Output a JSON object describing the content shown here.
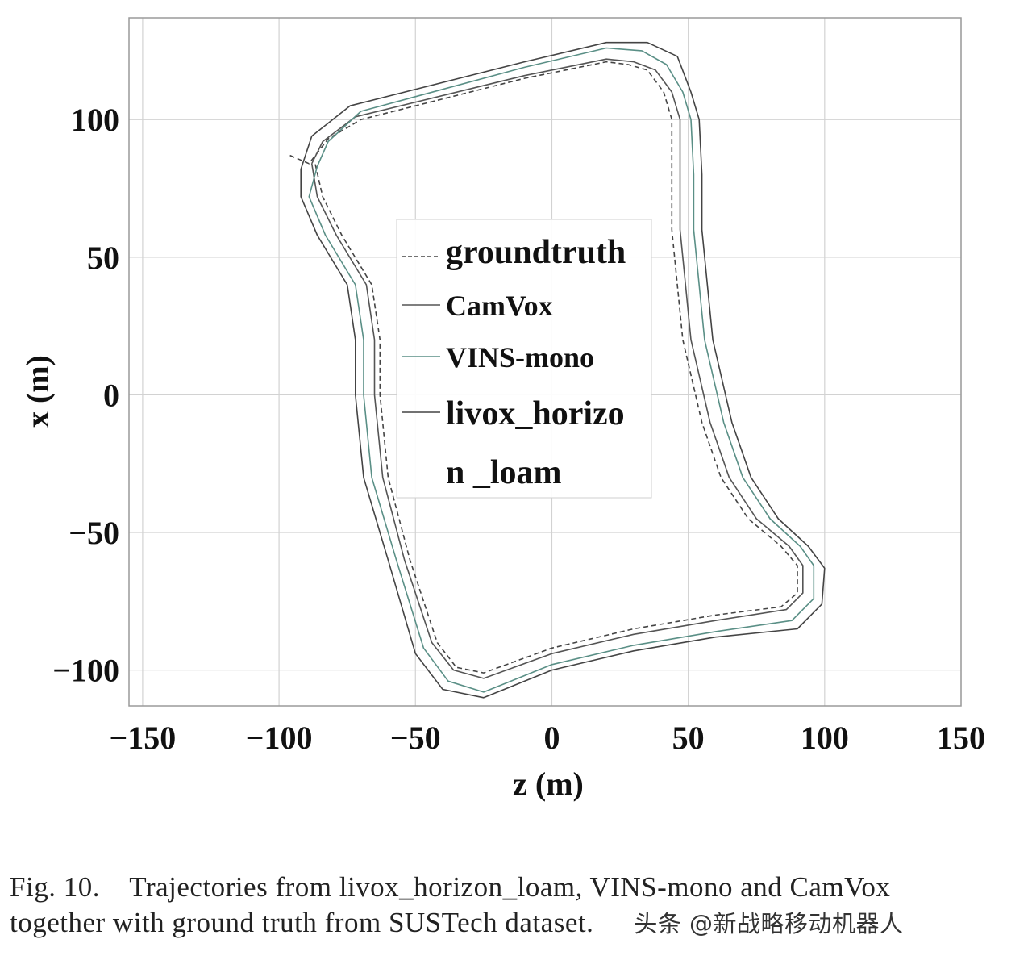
{
  "chart_data": {
    "type": "line",
    "xlabel": "z (m)",
    "ylabel": "x (m)",
    "xlim": [
      -155,
      150
    ],
    "ylim": [
      -113,
      137
    ],
    "xticks": [
      {
        "value": -150,
        "label": "−150"
      },
      {
        "value": -100,
        "label": "−100"
      },
      {
        "value": -50,
        "label": "−50"
      },
      {
        "value": 0,
        "label": "0"
      },
      {
        "value": 50,
        "label": "50"
      },
      {
        "value": 100,
        "label": "100"
      },
      {
        "value": 150,
        "label": "150"
      }
    ],
    "yticks": [
      {
        "value": 100,
        "label": "100"
      },
      {
        "value": 50,
        "label": "50"
      },
      {
        "value": 0,
        "label": "0"
      },
      {
        "value": -50,
        "label": "−50"
      },
      {
        "value": -100,
        "label": "−100"
      }
    ],
    "grid": true,
    "legend_position": "center",
    "legend": [
      {
        "label": "groundtruth",
        "color": "#444444",
        "style": "dashed"
      },
      {
        "label": "CamVox",
        "color": "#555555",
        "style": "solid"
      },
      {
        "label": "VINS-mono",
        "color": "#5a8f86",
        "style": "solid"
      },
      {
        "label": "livox_horizo",
        "color": "#444444",
        "style": "solid"
      },
      {
        "label": "n _loam",
        "color": "",
        "style": "none"
      }
    ],
    "series": [
      {
        "name": "groundtruth",
        "color": "#444444",
        "dash": true,
        "points": [
          [
            -96,
            87
          ],
          [
            -89,
            84
          ],
          [
            -82,
            93
          ],
          [
            -70,
            100
          ],
          [
            -10,
            115
          ],
          [
            20,
            121
          ],
          [
            28,
            120
          ],
          [
            35,
            118
          ],
          [
            41,
            110
          ],
          [
            44,
            100
          ],
          [
            44,
            80
          ],
          [
            44,
            60
          ],
          [
            48,
            20
          ],
          [
            55,
            -10
          ],
          [
            62,
            -30
          ],
          [
            72,
            -45
          ],
          [
            84,
            -55
          ],
          [
            90,
            -62
          ],
          [
            90,
            -72
          ],
          [
            84,
            -77
          ],
          [
            60,
            -80
          ],
          [
            30,
            -85
          ],
          [
            0,
            -92
          ],
          [
            -25,
            -101
          ],
          [
            -35,
            -99
          ],
          [
            -42,
            -90
          ],
          [
            -52,
            -60
          ],
          [
            -60,
            -30
          ],
          [
            -63,
            0
          ],
          [
            -63,
            20
          ],
          [
            -66,
            40
          ],
          [
            -77,
            58
          ],
          [
            -84,
            72
          ],
          [
            -87,
            85
          ]
        ]
      },
      {
        "name": "CamVox",
        "color": "#555555",
        "dash": false,
        "points": [
          [
            -88,
            84
          ],
          [
            -84,
            92
          ],
          [
            -72,
            101
          ],
          [
            -10,
            116
          ],
          [
            20,
            122
          ],
          [
            30,
            121
          ],
          [
            38,
            118
          ],
          [
            44,
            110
          ],
          [
            47,
            100
          ],
          [
            47,
            80
          ],
          [
            47,
            60
          ],
          [
            51,
            20
          ],
          [
            58,
            -10
          ],
          [
            65,
            -30
          ],
          [
            75,
            -45
          ],
          [
            87,
            -55
          ],
          [
            92,
            -62
          ],
          [
            92,
            -72
          ],
          [
            86,
            -78
          ],
          [
            60,
            -82
          ],
          [
            30,
            -87
          ],
          [
            0,
            -94
          ],
          [
            -25,
            -103
          ],
          [
            -36,
            -100
          ],
          [
            -44,
            -90
          ],
          [
            -54,
            -60
          ],
          [
            -62,
            -30
          ],
          [
            -65,
            0
          ],
          [
            -65,
            20
          ],
          [
            -68,
            40
          ],
          [
            -79,
            58
          ],
          [
            -86,
            72
          ],
          [
            -88,
            84
          ]
        ]
      },
      {
        "name": "VINS-mono",
        "color": "#5a8f86",
        "dash": false,
        "points": [
          [
            -86,
            83
          ],
          [
            -82,
            92
          ],
          [
            -70,
            103
          ],
          [
            -10,
            119
          ],
          [
            20,
            126
          ],
          [
            33,
            125
          ],
          [
            42,
            120
          ],
          [
            48,
            110
          ],
          [
            51,
            100
          ],
          [
            52,
            80
          ],
          [
            52,
            60
          ],
          [
            56,
            20
          ],
          [
            63,
            -10
          ],
          [
            70,
            -30
          ],
          [
            80,
            -45
          ],
          [
            91,
            -55
          ],
          [
            96,
            -62
          ],
          [
            96,
            -74
          ],
          [
            88,
            -82
          ],
          [
            60,
            -86
          ],
          [
            30,
            -91
          ],
          [
            0,
            -98
          ],
          [
            -25,
            -108
          ],
          [
            -38,
            -104
          ],
          [
            -47,
            -92
          ],
          [
            -57,
            -60
          ],
          [
            -66,
            -30
          ],
          [
            -69,
            0
          ],
          [
            -69,
            20
          ],
          [
            -72,
            40
          ],
          [
            -83,
            58
          ],
          [
            -89,
            72
          ],
          [
            -86,
            83
          ]
        ]
      },
      {
        "name": "livox_horizon_loam",
        "color": "#444444",
        "dash": false,
        "points": [
          [
            -92,
            82
          ],
          [
            -88,
            94
          ],
          [
            -74,
            105
          ],
          [
            -10,
            121
          ],
          [
            20,
            128
          ],
          [
            35,
            128
          ],
          [
            46,
            123
          ],
          [
            51,
            110
          ],
          [
            54,
            100
          ],
          [
            55,
            80
          ],
          [
            55,
            60
          ],
          [
            59,
            20
          ],
          [
            66,
            -10
          ],
          [
            73,
            -30
          ],
          [
            83,
            -45
          ],
          [
            94,
            -55
          ],
          [
            100,
            -63
          ],
          [
            99,
            -76
          ],
          [
            90,
            -85
          ],
          [
            60,
            -88
          ],
          [
            30,
            -93
          ],
          [
            0,
            -100
          ],
          [
            -25,
            -110
          ],
          [
            -40,
            -107
          ],
          [
            -50,
            -94
          ],
          [
            -60,
            -60
          ],
          [
            -69,
            -30
          ],
          [
            -72,
            0
          ],
          [
            -72,
            20
          ],
          [
            -75,
            40
          ],
          [
            -86,
            58
          ],
          [
            -92,
            72
          ],
          [
            -92,
            82
          ]
        ]
      }
    ]
  },
  "caption": {
    "line1": "Fig. 10.    Trajectories from livox_horizon_loam, VINS-mono and CamVox",
    "line2": "together with ground truth from SUSTech dataset.",
    "watermark": "头条 @新战略移动机器人"
  }
}
